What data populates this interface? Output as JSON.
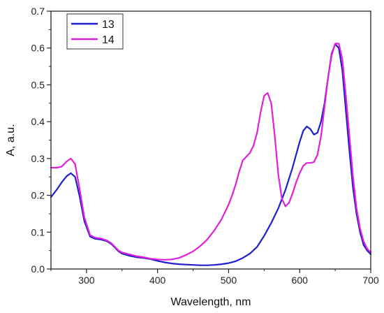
{
  "chart_data": {
    "type": "line",
    "xlabel": "Wavelength, nm",
    "ylabel": "A, a.u.",
    "xlim": [
      250,
      700
    ],
    "ylim": [
      0.0,
      0.7
    ],
    "x_ticks": [
      "300",
      "400",
      "500",
      "600",
      "700"
    ],
    "x_tick_values": [
      300,
      400,
      500,
      600,
      700
    ],
    "y_ticks": [
      "0.0",
      "0.1",
      "0.2",
      "0.3",
      "0.4",
      "0.5",
      "0.6",
      "0.7"
    ],
    "y_tick_values": [
      0.0,
      0.1,
      0.2,
      0.3,
      0.4,
      0.5,
      0.6,
      0.7
    ],
    "grid": false,
    "legend_position": "top-left",
    "series": [
      {
        "name": "13",
        "color": "#1f1fcf",
        "x": [
          250,
          258,
          265,
          272,
          278,
          284,
          290,
          297,
          305,
          312,
          320,
          328,
          335,
          340,
          345,
          350,
          360,
          370,
          380,
          390,
          400,
          410,
          420,
          430,
          440,
          450,
          460,
          470,
          480,
          490,
          500,
          510,
          520,
          530,
          540,
          550,
          560,
          570,
          580,
          590,
          600,
          605,
          610,
          615,
          620,
          625,
          630,
          635,
          640,
          645,
          650,
          655,
          660,
          665,
          670,
          675,
          680,
          685,
          690,
          695,
          700
        ],
        "y": [
          0.195,
          0.215,
          0.235,
          0.252,
          0.26,
          0.25,
          0.2,
          0.13,
          0.088,
          0.082,
          0.08,
          0.076,
          0.068,
          0.058,
          0.048,
          0.042,
          0.036,
          0.032,
          0.03,
          0.027,
          0.022,
          0.018,
          0.015,
          0.013,
          0.012,
          0.011,
          0.01,
          0.01,
          0.011,
          0.013,
          0.016,
          0.021,
          0.03,
          0.042,
          0.06,
          0.09,
          0.125,
          0.165,
          0.215,
          0.275,
          0.345,
          0.375,
          0.387,
          0.38,
          0.365,
          0.37,
          0.4,
          0.45,
          0.52,
          0.585,
          0.61,
          0.6,
          0.54,
          0.43,
          0.32,
          0.22,
          0.15,
          0.1,
          0.065,
          0.05,
          0.04
        ]
      },
      {
        "name": "14",
        "color": "#e020d8",
        "x": [
          250,
          258,
          265,
          272,
          278,
          284,
          290,
          297,
          305,
          312,
          320,
          328,
          335,
          340,
          345,
          350,
          360,
          370,
          380,
          390,
          400,
          410,
          420,
          430,
          440,
          450,
          460,
          470,
          480,
          490,
          500,
          505,
          510,
          515,
          520,
          525,
          530,
          535,
          540,
          545,
          550,
          555,
          560,
          565,
          570,
          575,
          580,
          585,
          590,
          595,
          600,
          605,
          610,
          615,
          620,
          625,
          630,
          635,
          640,
          645,
          650,
          655,
          660,
          665,
          670,
          675,
          680,
          685,
          690,
          695,
          700
        ],
        "y": [
          0.275,
          0.275,
          0.278,
          0.292,
          0.3,
          0.285,
          0.22,
          0.14,
          0.092,
          0.085,
          0.083,
          0.078,
          0.07,
          0.06,
          0.05,
          0.045,
          0.04,
          0.035,
          0.032,
          0.028,
          0.026,
          0.025,
          0.026,
          0.03,
          0.038,
          0.048,
          0.062,
          0.08,
          0.105,
          0.135,
          0.175,
          0.2,
          0.23,
          0.265,
          0.295,
          0.305,
          0.315,
          0.335,
          0.37,
          0.425,
          0.47,
          0.478,
          0.45,
          0.36,
          0.255,
          0.19,
          0.17,
          0.18,
          0.205,
          0.235,
          0.26,
          0.28,
          0.288,
          0.288,
          0.29,
          0.31,
          0.36,
          0.44,
          0.52,
          0.58,
          0.612,
          0.612,
          0.57,
          0.47,
          0.36,
          0.25,
          0.165,
          0.11,
          0.075,
          0.055,
          0.045
        ]
      }
    ]
  }
}
